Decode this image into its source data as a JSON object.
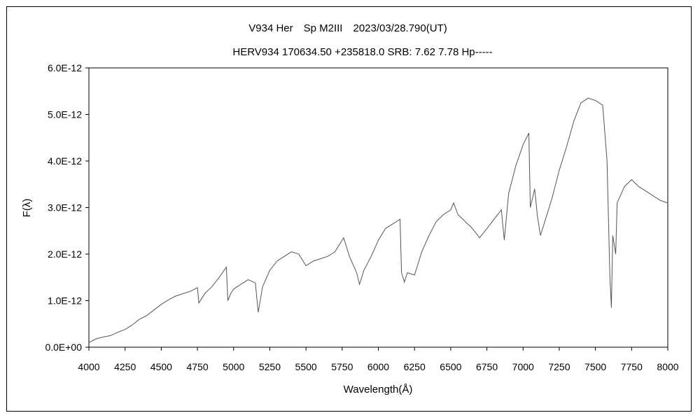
{
  "chart_data": {
    "type": "line",
    "title": "V934 Her　Sp M2III　2023/03/28.790(UT)",
    "subtitle": "HERV934 170634.50 +235818.0 SRB: 7.62 7.78 Hp-----",
    "xlabel": "Wavelength(Å)",
    "ylabel": "F(λ)",
    "xlim": [
      4000,
      8000
    ],
    "ylim": [
      0,
      6e-12
    ],
    "x_ticks": [
      "4000",
      "4250",
      "4500",
      "4750",
      "5000",
      "5250",
      "5500",
      "5750",
      "6000",
      "6250",
      "6500",
      "6750",
      "7000",
      "7250",
      "7500",
      "7750",
      "8000"
    ],
    "y_ticks": [
      "0.0E+00",
      "1.0E-12",
      "2.0E-12",
      "3.0E-12",
      "4.0E-12",
      "5.0E-12",
      "6.0E-12"
    ],
    "grid": false,
    "legend": "none",
    "line_color": "#555555",
    "series": [
      {
        "x": [
          4000,
          4050,
          4100,
          4150,
          4200,
          4250,
          4300,
          4350,
          4400,
          4450,
          4500,
          4550,
          4600,
          4650,
          4700,
          4750,
          4760,
          4800,
          4850,
          4900,
          4950,
          4960,
          4980,
          5000,
          5050,
          5100,
          5150,
          5170,
          5200,
          5250,
          5300,
          5350,
          5400,
          5450,
          5500,
          5550,
          5600,
          5650,
          5700,
          5750,
          5760,
          5800,
          5850,
          5870,
          5900,
          5950,
          6000,
          6050,
          6100,
          6150,
          6160,
          6180,
          6200,
          6250,
          6300,
          6350,
          6400,
          6450,
          6500,
          6520,
          6550,
          6600,
          6650,
          6700,
          6750,
          6800,
          6850,
          6870,
          6900,
          6950,
          7000,
          7040,
          7050,
          7080,
          7100,
          7120,
          7150,
          7200,
          7250,
          7300,
          7350,
          7400,
          7450,
          7500,
          7550,
          7580,
          7600,
          7610,
          7620,
          7640,
          7650,
          7700,
          7750,
          7800,
          7850,
          7900,
          7950,
          8000
        ],
        "values": [
          1e-13,
          1.8e-13,
          2.2e-13,
          2.5e-13,
          3.2e-13,
          3.8e-13,
          4.8e-13,
          6e-13,
          6.8e-13,
          8e-13,
          9.2e-13,
          1.02e-12,
          1.1e-12,
          1.15e-12,
          1.2e-12,
          1.28e-12,
          9.5e-13,
          1.15e-12,
          1.3e-12,
          1.5e-12,
          1.72e-12,
          1e-12,
          1.15e-12,
          1.25e-12,
          1.35e-12,
          1.45e-12,
          1.38e-12,
          7.5e-13,
          1.3e-12,
          1.65e-12,
          1.85e-12,
          1.95e-12,
          2.05e-12,
          2e-12,
          1.75e-12,
          1.85e-12,
          1.9e-12,
          1.95e-12,
          2.05e-12,
          2.3e-12,
          2.35e-12,
          1.95e-12,
          1.6e-12,
          1.35e-12,
          1.65e-12,
          1.95e-12,
          2.3e-12,
          2.55e-12,
          2.65e-12,
          2.75e-12,
          1.6e-12,
          1.4e-12,
          1.6e-12,
          1.55e-12,
          2.05e-12,
          2.4e-12,
          2.7e-12,
          2.85e-12,
          2.95e-12,
          3.1e-12,
          2.85e-12,
          2.7e-12,
          2.55e-12,
          2.35e-12,
          2.55e-12,
          2.75e-12,
          2.95e-12,
          2.3e-12,
          3.3e-12,
          3.9e-12,
          4.35e-12,
          4.6e-12,
          3e-12,
          3.4e-12,
          2.8e-12,
          2.4e-12,
          2.7e-12,
          3.2e-12,
          3.8e-12,
          4.3e-12,
          4.85e-12,
          5.25e-12,
          5.35e-12,
          5.3e-12,
          5.2e-12,
          4e-12,
          1.5e-12,
          8.5e-13,
          2.4e-12,
          2e-12,
          3.1e-12,
          3.45e-12,
          3.6e-12,
          3.45e-12,
          3.35e-12,
          3.25e-12,
          3.15e-12,
          3.1e-12
        ]
      }
    ]
  }
}
